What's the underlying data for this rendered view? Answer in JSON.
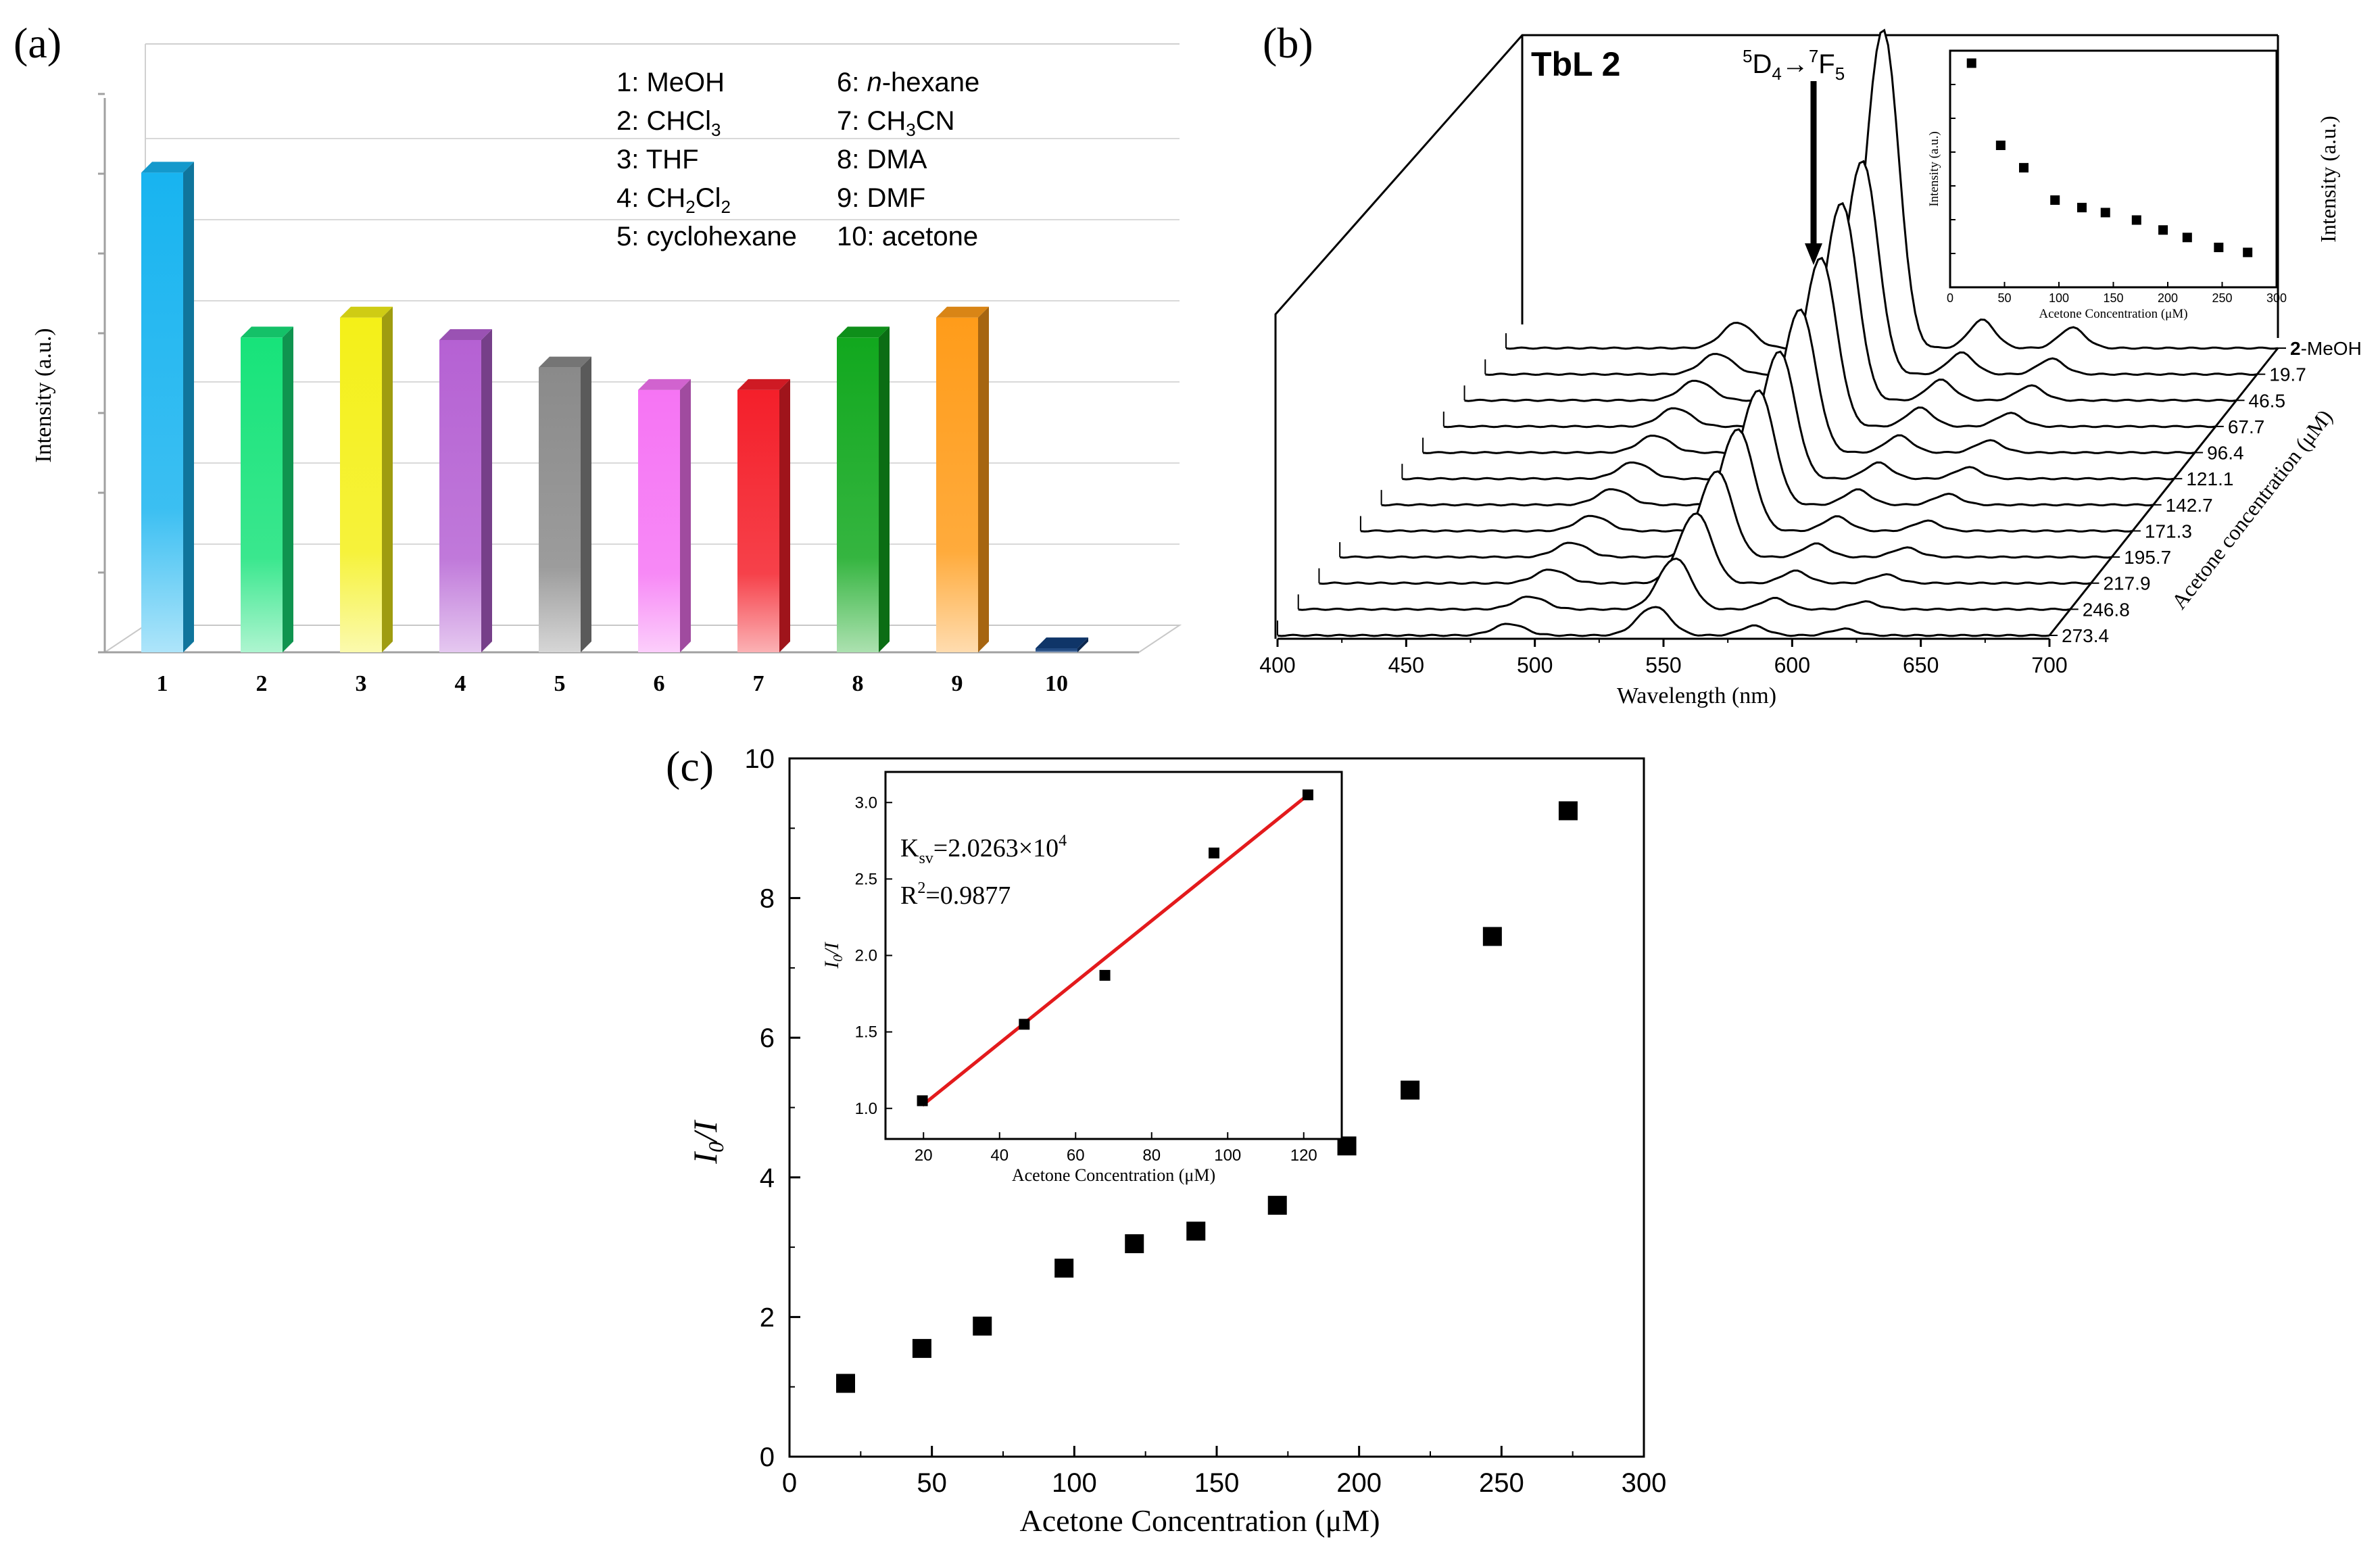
{
  "chart_data": [
    {
      "type": "bar",
      "panel_label": "(a)",
      "title": "",
      "xlabel": "",
      "ylabel": "Intensity (a.u.)",
      "ylim": [
        0,
        100
      ],
      "categories": [
        "1",
        "2",
        "3",
        "4",
        "5",
        "6",
        "7",
        "8",
        "9",
        "10"
      ],
      "values": [
        96,
        63,
        67,
        62.5,
        57,
        52.5,
        52.5,
        63,
        67,
        0.8
      ],
      "bar_colors": [
        "#18b4f0",
        "#17e37a",
        "#f4f018",
        "#b561d3",
        "#8a8a8a",
        "#f674f4",
        "#f41f2a",
        "#11a81e",
        "#ff9c1a",
        "#123e7a"
      ],
      "legend_col1": [
        "1: MeOH",
        "2: CHCl3",
        "3: THF",
        "4: CH2Cl2",
        "5: cyclohexane"
      ],
      "legend_col2": [
        "6: n-hexane",
        "7: CH3CN",
        "8: DMA",
        "9: DMF",
        "10: acetone"
      ]
    },
    {
      "type": "line",
      "panel_label": "(b)",
      "title": "TbL 2",
      "annotation": "5D4→7F5",
      "xlabel": "Wavelength (nm)",
      "ylabel": "Intensity (a.u.)",
      "zlabel": "Acetone concentration (μM)",
      "xlim": [
        400,
        700
      ],
      "xticks": [
        "400",
        "450",
        "500",
        "550",
        "600",
        "650",
        "700"
      ],
      "series_labels": [
        "2-MeOH",
        "19.7",
        "46.5",
        "67.7",
        "96.4",
        "121.1",
        "142.7",
        "171.3",
        "195.7",
        "217.9",
        "246.8",
        "273.4"
      ],
      "peak_heights_545nm": [
        10.0,
        6.7,
        6.2,
        5.3,
        4.5,
        4.0,
        3.6,
        3.2,
        2.7,
        2.2,
        1.6,
        0.9
      ],
      "inset": {
        "type": "scatter",
        "xlabel": "Acetone Concentration (μM)",
        "ylabel": "Intensity (a.u.)",
        "xlim": [
          0,
          300
        ],
        "xticks": [
          "0",
          "50",
          "100",
          "150",
          "200",
          "250",
          "300"
        ],
        "x": [
          19.7,
          46.5,
          67.7,
          96.4,
          121.1,
          142.7,
          171.3,
          195.7,
          217.9,
          246.8,
          273.4
        ],
        "y": [
          1.0,
          0.67,
          0.58,
          0.45,
          0.42,
          0.4,
          0.37,
          0.33,
          0.3,
          0.26,
          0.24
        ]
      }
    },
    {
      "type": "scatter",
      "panel_label": "(c)",
      "xlabel": "Acetone Concentration (μM)",
      "ylabel": "I0/I",
      "xlim": [
        0,
        300
      ],
      "ylim": [
        0,
        10
      ],
      "xticks": [
        "0",
        "50",
        "100",
        "150",
        "200",
        "250",
        "300"
      ],
      "yticks": [
        "0",
        "2",
        "4",
        "6",
        "8",
        "10"
      ],
      "x": [
        19.7,
        46.5,
        67.7,
        96.4,
        121.1,
        142.7,
        171.3,
        195.7,
        217.9,
        246.8,
        273.4
      ],
      "y": [
        1.05,
        1.55,
        1.87,
        2.7,
        3.05,
        3.23,
        3.6,
        4.45,
        5.25,
        7.45,
        9.25
      ],
      "inset": {
        "type": "scatter",
        "xlabel": "Acetone Concentration (μM)",
        "ylabel": "I0/I",
        "xlim": [
          10,
          130
        ],
        "ylim": [
          0.8,
          3.2
        ],
        "xticks": [
          "20",
          "40",
          "60",
          "80",
          "100",
          "120"
        ],
        "yticks": [
          "1.0",
          "1.5",
          "2.0",
          "2.5",
          "3.0"
        ],
        "x": [
          19.7,
          46.5,
          67.7,
          96.4,
          121.1
        ],
        "y": [
          1.05,
          1.55,
          1.87,
          2.67,
          3.05
        ],
        "fit_line": {
          "x": [
            19.7,
            121.1
          ],
          "y": [
            1.02,
            3.05
          ],
          "color": "#e31a1c"
        },
        "annotation_ksv": "Ksv=2.0263×10^4",
        "annotation_r2": "R^2=0.9877"
      }
    }
  ]
}
